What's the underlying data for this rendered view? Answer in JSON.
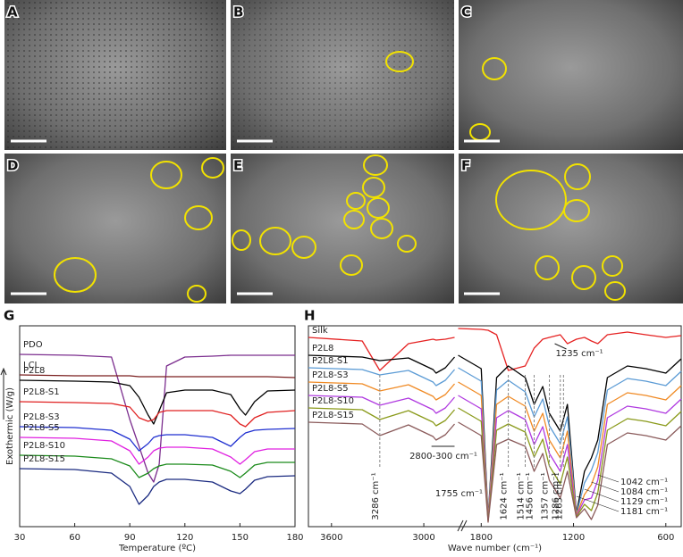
{
  "sem_labels": [
    "A",
    "B",
    "C",
    "D",
    "E",
    "F"
  ],
  "chart_data": [
    {
      "type": "line",
      "panel_label": "G",
      "xlabel": "Temperature (ºC)",
      "ylabel": "Exothermic (W/g)",
      "x": [
        30,
        60,
        80,
        90,
        95,
        100,
        103,
        106,
        110,
        120,
        135,
        145,
        150,
        153,
        158,
        165,
        180
      ],
      "xlim": [
        30,
        180
      ],
      "xticks": [
        30,
        60,
        90,
        120,
        150,
        180
      ],
      "ylim": [
        0,
        225
      ],
      "series": [
        {
          "name": "PDO",
          "color": "#7b2d8e",
          "values": [
            193,
            192,
            190,
            120,
            90,
            60,
            50,
            70,
            180,
            190,
            191,
            192,
            192,
            192,
            192,
            192,
            192
          ]
        },
        {
          "name": "LCL",
          "color": "#7a1f1f",
          "values": [
            170,
            169,
            169,
            169,
            168,
            168,
            168,
            168,
            168,
            168,
            168,
            168,
            168,
            168,
            168,
            168,
            167
          ]
        },
        {
          "name": "P2L8",
          "color": "#000000",
          "values": [
            164,
            163,
            162,
            158,
            145,
            125,
            115,
            130,
            150,
            153,
            153,
            148,
            132,
            125,
            140,
            152,
            153
          ]
        },
        {
          "name": "P2L8-S1",
          "color": "#e02020",
          "values": [
            140,
            139,
            138,
            134,
            122,
            118,
            120,
            128,
            130,
            130,
            130,
            125,
            115,
            112,
            122,
            128,
            130
          ]
        },
        {
          "name": "P2L8-S3",
          "color": "#1f2fd0",
          "values": [
            112,
            111,
            108,
            98,
            85,
            93,
            100,
            102,
            103,
            103,
            100,
            90,
            100,
            105,
            108,
            109,
            110
          ]
        },
        {
          "name": "P2L8-S5",
          "color": "#e020e0",
          "values": [
            100,
            99,
            96,
            85,
            70,
            78,
            85,
            88,
            89,
            89,
            87,
            78,
            70,
            75,
            84,
            87,
            87
          ]
        },
        {
          "name": "P2L8-S10",
          "color": "#1a8a1a",
          "values": [
            80,
            79,
            76,
            68,
            55,
            60,
            65,
            68,
            70,
            70,
            69,
            62,
            55,
            60,
            69,
            72,
            72
          ]
        },
        {
          "name": "P2L8-S15",
          "color": "#1a2a80",
          "values": [
            65,
            64,
            60,
            45,
            25,
            35,
            45,
            50,
            53,
            53,
            50,
            40,
            37,
            42,
            52,
            56,
            57
          ]
        }
      ]
    },
    {
      "type": "line",
      "panel_label": "H",
      "xlabel": "Wave number (cm⁻¹)",
      "x": [
        3750,
        3400,
        3286,
        3100,
        2940,
        2920,
        2860,
        2800,
        1950,
        1800,
        1755,
        1700,
        1624,
        1514,
        1456,
        1400,
        1357,
        1286,
        1240,
        1181,
        1129,
        1084,
        1042,
        980,
        850,
        730,
        600,
        500
      ],
      "xlim": [
        [
          3750,
          2800
        ],
        [
          1950,
          500
        ]
      ],
      "xticks": [
        3600,
        3000,
        1800,
        1200,
        600
      ],
      "ylim": [
        0,
        225
      ],
      "series": [
        {
          "name": "Silk",
          "color": "#e52222",
          "values": [
            212,
            208,
            175,
            205,
            210,
            209,
            210,
            212,
            222,
            221,
            220,
            215,
            175,
            180,
            200,
            210,
            212,
            215,
            205,
            210,
            212,
            208,
            205,
            215,
            218,
            215,
            212,
            214
          ]
        },
        {
          "name": "P2L8",
          "color": "#000000",
          "values": [
            192,
            190,
            186,
            189,
            176,
            172,
            178,
            190,
            192,
            177,
            10,
            167,
            180,
            167,
            137,
            157,
            127,
            107,
            137,
            15,
            62,
            77,
            97,
            167,
            180,
            177,
            172,
            188
          ]
        },
        {
          "name": "P2L8-S1",
          "color": "#5b9bd5",
          "values": [
            178,
            176,
            170,
            175,
            162,
            158,
            164,
            176,
            178,
            163,
            9,
            153,
            164,
            151,
            123,
            143,
            113,
            93,
            123,
            14,
            49,
            63,
            83,
            153,
            166,
            163,
            158,
            174
          ]
        },
        {
          "name": "P2L8-S3",
          "color": "#f08a24",
          "values": [
            162,
            160,
            152,
            159,
            146,
            142,
            148,
            160,
            162,
            147,
            8,
            137,
            146,
            135,
            107,
            127,
            97,
            77,
            107,
            13,
            36,
            47,
            67,
            137,
            150,
            147,
            142,
            158
          ]
        },
        {
          "name": "P2L8-S5",
          "color": "#b03ae0",
          "values": [
            147,
            145,
            136,
            144,
            131,
            127,
            133,
            145,
            147,
            132,
            7,
            122,
            130,
            120,
            92,
            112,
            82,
            62,
            92,
            12,
            30,
            32,
            52,
            122,
            135,
            132,
            127,
            143
          ]
        },
        {
          "name": "P2L8-S10",
          "color": "#8a9a1a",
          "values": [
            133,
            131,
            120,
            130,
            117,
            113,
            119,
            131,
            133,
            118,
            6,
            108,
            115,
            106,
            78,
            98,
            68,
            48,
            78,
            11,
            25,
            18,
            38,
            108,
            121,
            118,
            113,
            129
          ]
        },
        {
          "name": "P2L8-S15",
          "color": "#8a5a5a",
          "values": [
            117,
            115,
            102,
            114,
            101,
            97,
            103,
            115,
            117,
            102,
            5,
            92,
            98,
            90,
            62,
            82,
            52,
            32,
            62,
            10,
            20,
            8,
            24,
            92,
            105,
            102,
            97,
            113
          ]
        }
      ],
      "annotations": [
        {
          "text": "3286 cm⁻¹",
          "at": 3286,
          "style": "vertical"
        },
        {
          "text": "1624 cm⁻¹",
          "at": 1624,
          "style": "vertical"
        },
        {
          "text": "1514 cm⁻¹",
          "at": 1514,
          "style": "vertical"
        },
        {
          "text": "1456 cm⁻¹",
          "at": 1456,
          "style": "vertical"
        },
        {
          "text": "1357 cm⁻¹",
          "at": 1357,
          "style": "vertical"
        },
        {
          "text": "1286 cm⁻¹",
          "at": 1286,
          "style": "vertical"
        },
        {
          "text": "1265 cm⁻¹",
          "at": 1265,
          "style": "vertical"
        },
        {
          "text": "2800-300 cm⁻¹",
          "style": "range"
        },
        {
          "text": "1755 cm⁻¹",
          "at": 1755,
          "style": "left"
        },
        {
          "text": "1235 cm⁻¹",
          "at": 1235,
          "style": "top"
        },
        {
          "text": "1042 cm⁻¹",
          "at": 1042,
          "style": "right"
        },
        {
          "text": "1084 cm⁻¹",
          "at": 1084,
          "style": "right"
        },
        {
          "text": "1129 cm⁻¹",
          "at": 1129,
          "style": "right"
        },
        {
          "text": "1181 cm⁻¹",
          "at": 1181,
          "style": "right"
        }
      ]
    }
  ]
}
